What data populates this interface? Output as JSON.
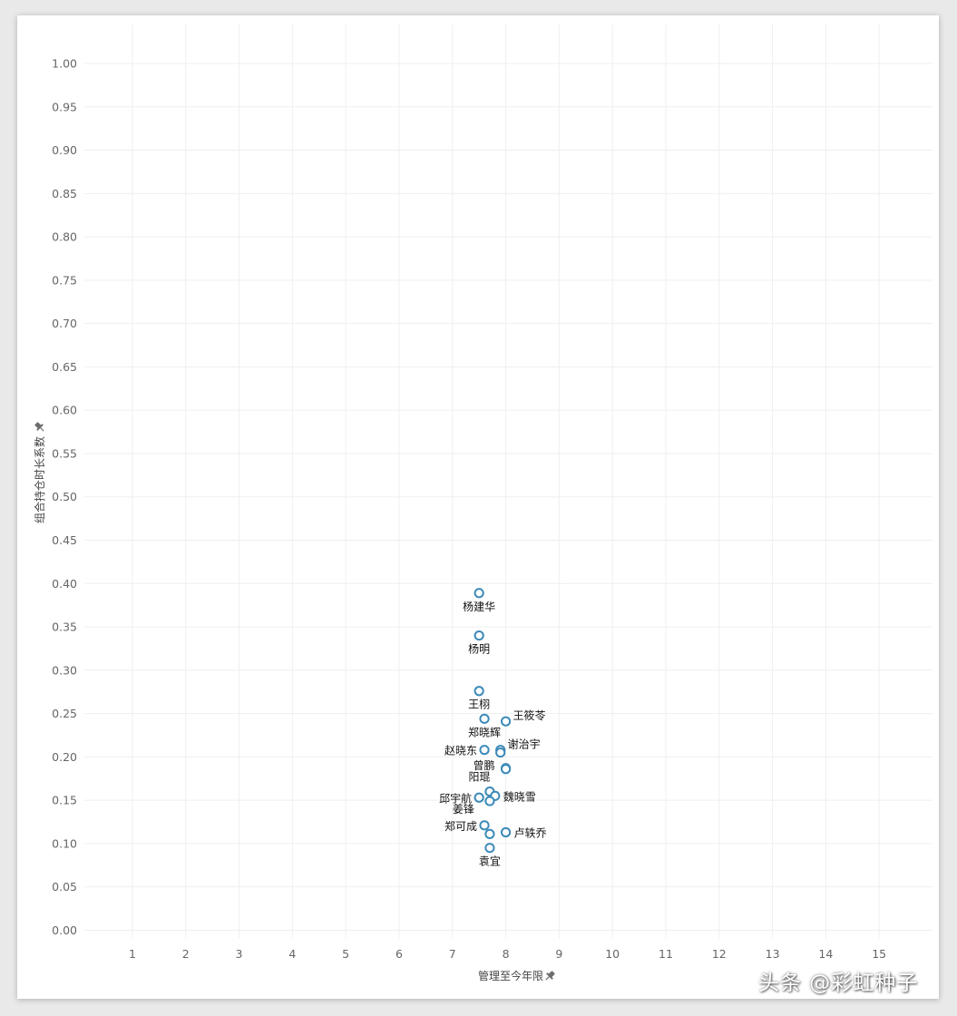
{
  "chart_data": {
    "type": "scatter",
    "title": "",
    "xlabel": "管理至今年限",
    "ylabel": "组合持仓时长系数",
    "xlim": [
      0.1,
      16.0
    ],
    "ylim": [
      -0.01,
      1.045
    ],
    "x_ticks": [
      "1",
      "2",
      "3",
      "4",
      "5",
      "6",
      "7",
      "8",
      "9",
      "10",
      "11",
      "12",
      "13",
      "14",
      "15"
    ],
    "y_ticks": [
      "0.00",
      "0.05",
      "0.10",
      "0.15",
      "0.20",
      "0.25",
      "0.30",
      "0.35",
      "0.40",
      "0.45",
      "0.50",
      "0.55",
      "0.60",
      "0.65",
      "0.70",
      "0.75",
      "0.80",
      "0.85",
      "0.90",
      "0.95",
      "1.00"
    ],
    "grid": true,
    "points": [
      {
        "name": "杨建华",
        "x": 7.5,
        "y": 0.389,
        "label_pos": "below"
      },
      {
        "name": "杨明",
        "x": 7.5,
        "y": 0.34,
        "label_pos": "below"
      },
      {
        "name": "王栩",
        "x": 7.5,
        "y": 0.276,
        "label_pos": "below"
      },
      {
        "name": "郑晓辉",
        "x": 7.6,
        "y": 0.244,
        "label_pos": "below"
      },
      {
        "name": "王筱苓",
        "x": 8.0,
        "y": 0.241,
        "label_pos": "right-up"
      },
      {
        "name": "赵晓东",
        "x": 7.6,
        "y": 0.208,
        "label_pos": "left"
      },
      {
        "name": "谢治宇",
        "x": 7.9,
        "y": 0.208,
        "label_pos": "right-up"
      },
      {
        "name": "",
        "x": 7.9,
        "y": 0.205,
        "label_pos": "none"
      },
      {
        "name": "曾鹏",
        "x": 8.0,
        "y": 0.187,
        "label_pos": "left-up"
      },
      {
        "name": "阳琨",
        "x": 8.0,
        "y": 0.186,
        "label_pos": "left-down"
      },
      {
        "name": "",
        "x": 7.7,
        "y": 0.16,
        "label_pos": "none"
      },
      {
        "name": "魏晓雪",
        "x": 7.8,
        "y": 0.155,
        "label_pos": "right"
      },
      {
        "name": "邱宇航",
        "x": 7.5,
        "y": 0.153,
        "label_pos": "left"
      },
      {
        "name": "姜锋",
        "x": 7.7,
        "y": 0.149,
        "label_pos": "left-down"
      },
      {
        "name": "郑可成",
        "x": 7.6,
        "y": 0.121,
        "label_pos": "left"
      },
      {
        "name": "卢轶乔",
        "x": 8.0,
        "y": 0.113,
        "label_pos": "right"
      },
      {
        "name": "",
        "x": 7.7,
        "y": 0.111,
        "label_pos": "none"
      },
      {
        "name": "袁宜",
        "x": 7.7,
        "y": 0.095,
        "label_pos": "below"
      }
    ]
  },
  "icons": {
    "x_axis_pin": "pin-icon",
    "y_axis_pin": "pin-icon"
  },
  "watermark": "头条 @彩虹种子"
}
